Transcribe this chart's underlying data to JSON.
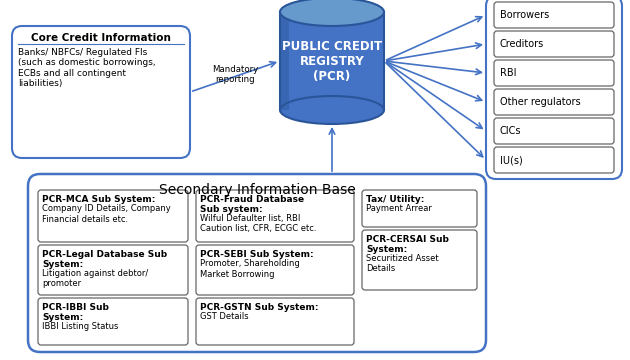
{
  "title": "Secondary Information Base",
  "pcr_label": "PUBLIC CREDIT\nREGISTRY\n(PCR)",
  "core_title": "Core Credit Information",
  "core_body": "Banks/ NBFCs/ Regulated FIs\n(such as domestic borrowings,\nECBs and all contingent\nliabilities)",
  "mandatory_text": "Mandatory\nreporting",
  "right_boxes": [
    "Borrowers",
    "Creditors",
    "RBI",
    "Other regulators",
    "CICs",
    "IU(s)"
  ],
  "arrow_color": "#4472c4",
  "box_edge_color": "#4472c4",
  "sub_box_edge_color": "#666666",
  "cylinder_top_color": "#6699cc",
  "cylinder_body_color": "#4472c4",
  "cylinder_dark_color": "#2a5599"
}
